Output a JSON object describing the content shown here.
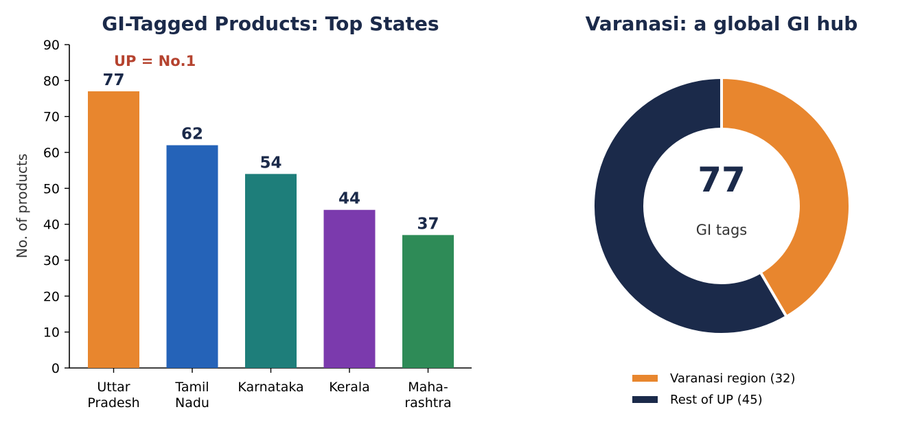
{
  "chart_data": [
    {
      "type": "bar",
      "title": "GI-Tagged Products: Top States",
      "ylabel": "No. of products",
      "ylim": [
        0,
        90
      ],
      "yticks": [
        0,
        10,
        20,
        30,
        40,
        50,
        60,
        70,
        80,
        90
      ],
      "categories": [
        [
          "Uttar",
          "Pradesh"
        ],
        [
          "Tamil",
          "Nadu"
        ],
        [
          "Karnataka"
        ],
        [
          "Kerala"
        ],
        [
          "Maha-",
          "rashtra"
        ]
      ],
      "values": [
        77,
        62,
        54,
        44,
        37
      ],
      "colors": [
        "#e8862e",
        "#2563b8",
        "#1e7e7a",
        "#7b3aad",
        "#2e8b57"
      ],
      "annotation": {
        "text": "UP = No.1",
        "color": "#b5432f"
      }
    },
    {
      "type": "pie",
      "title": "Varanasi: a global GI hub",
      "center_value": "77",
      "center_label": "GI tags",
      "slices": [
        {
          "label": "Varanasi region (32)",
          "value": 32,
          "color": "#e8862e"
        },
        {
          "label": "Rest of UP (45)",
          "value": 45,
          "color": "#1b2a4a"
        }
      ]
    }
  ]
}
